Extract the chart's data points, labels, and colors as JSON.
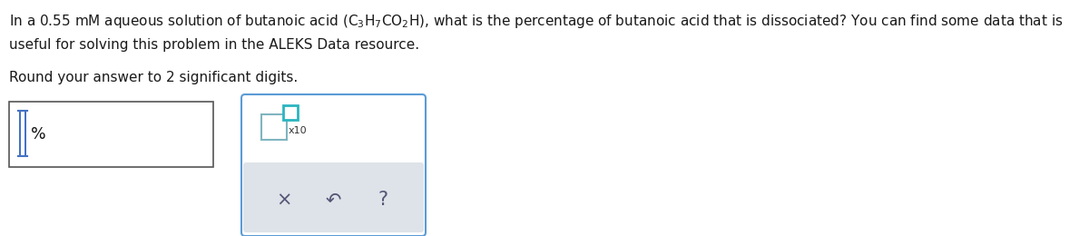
{
  "line1": "In a 0.55 mM aqueous solution of butanoic acid $\\left(\\mathrm{C_3H_7CO_2H}\\right)$, what is the percentage of butanoic acid that is dissociated? You can find some data that is",
  "line2": "useful for solving this problem in the ALEKS Data resource.",
  "line3": "Round your answer to 2 significant digits.",
  "percent_label": "%",
  "x10_label": "x10",
  "icon_x": "×",
  "icon_undo": "↶",
  "icon_q": "?",
  "bg_color": "#ffffff",
  "text_color": "#1a1a1a",
  "font_size_main": 11.0,
  "font_size_label": 12.5,
  "cursor_color": "#4472C4",
  "box_border_color": "#555555",
  "panel_border_color": "#5b9bd5",
  "panel_bg": "#ffffff",
  "gray_bar_color": "#dde3e8",
  "icon_color": "#555577",
  "teal_color": "#2bb5c0",
  "small_box_color": "#7fb5c0"
}
